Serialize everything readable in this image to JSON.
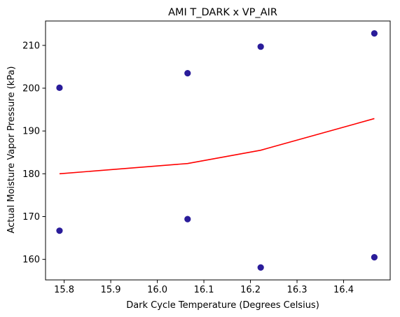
{
  "chart_data": {
    "type": "scatter",
    "title": "AMI T_DARK x VP_AIR",
    "xlabel": "Dark Cycle Temperature (Degrees Celsius)",
    "ylabel": "Actual Moisture Vapor Pressure (kPa)",
    "xlim": [
      15.76,
      16.5
    ],
    "ylim": [
      155.2,
      215.7
    ],
    "xticks": [
      15.8,
      15.9,
      16.0,
      16.1,
      16.2,
      16.3,
      16.4
    ],
    "xtick_labels": [
      "15.8",
      "15.9",
      "16.0",
      "16.1",
      "16.2",
      "16.3",
      "16.4"
    ],
    "yticks": [
      160,
      170,
      180,
      190,
      200,
      210
    ],
    "ytick_labels": [
      "160",
      "170",
      "180",
      "190",
      "200",
      "210"
    ],
    "grid": false,
    "series": [
      {
        "kind": "scatter",
        "color": "#2a1c9a",
        "points": [
          {
            "x": 15.79,
            "y": 200.1
          },
          {
            "x": 15.79,
            "y": 166.7
          },
          {
            "x": 16.065,
            "y": 203.5
          },
          {
            "x": 16.065,
            "y": 169.4
          },
          {
            "x": 16.222,
            "y": 209.7
          },
          {
            "x": 16.222,
            "y": 158.1
          },
          {
            "x": 16.466,
            "y": 212.8
          },
          {
            "x": 16.466,
            "y": 160.5
          }
        ]
      },
      {
        "kind": "line",
        "color": "#ff0000",
        "points": [
          {
            "x": 15.79,
            "y": 180.0
          },
          {
            "x": 16.065,
            "y": 182.4
          },
          {
            "x": 16.222,
            "y": 185.5
          },
          {
            "x": 16.466,
            "y": 192.9
          }
        ]
      }
    ]
  }
}
